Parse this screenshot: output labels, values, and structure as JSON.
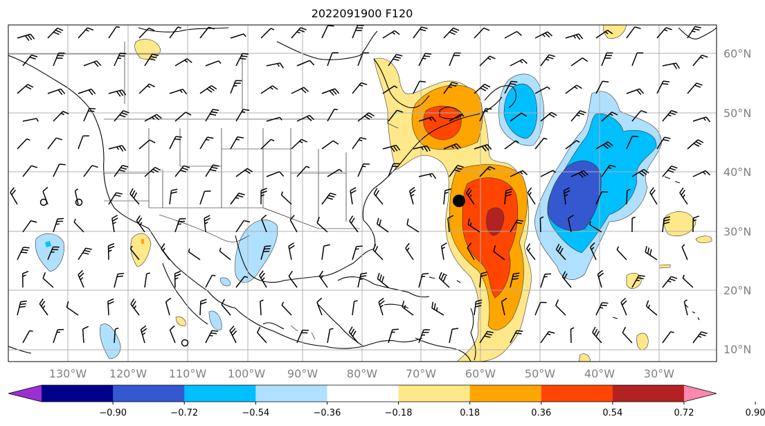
{
  "title": "2022091900 F120",
  "lat_labels": [
    "60°N",
    "50°N",
    "40°N",
    "30°N",
    "20°N",
    "10°N"
  ],
  "lon_labels": [
    "130°W",
    "120°W",
    "110°W",
    "100°W",
    "90°W",
    "80°W",
    "70°W",
    "60°W",
    "50°W",
    "40°W",
    "30°W"
  ],
  "colorbar": {
    "ticks": [
      "−0.90",
      "−0.72",
      "−0.54",
      "−0.36",
      "−0.18",
      "0.18",
      "0.36",
      "0.54",
      "0.72",
      "0.90"
    ],
    "colors": [
      "#9b30d0",
      "#00008b",
      "#3558d0",
      "#00bfff",
      "#b0e0ff",
      "#ffffff",
      "#ffe88a",
      "#ffa500",
      "#ff4500",
      "#b22222",
      "#ff88b0"
    ]
  },
  "map": {
    "fill_colors": {
      "pale_yellow": "#ffe88a",
      "orange": "#ffa500",
      "red_orange": "#ff4500",
      "dark_red": "#b22222",
      "light_blue": "#b0e0ff",
      "deep_sky_blue": "#00bfff",
      "royal_blue": "#3558d0"
    }
  }
}
